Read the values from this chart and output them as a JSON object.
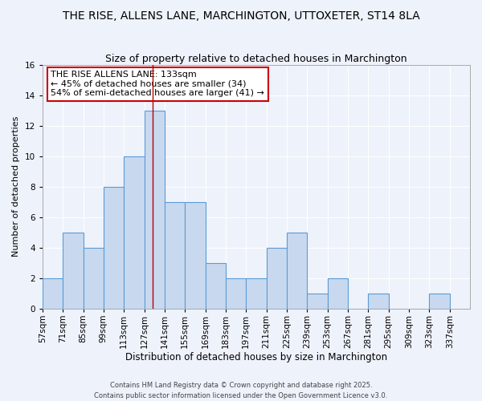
{
  "title": "THE RISE, ALLENS LANE, MARCHINGTON, UTTOXETER, ST14 8LA",
  "subtitle": "Size of property relative to detached houses in Marchington",
  "xlabel": "Distribution of detached houses by size in Marchington",
  "ylabel": "Number of detached properties",
  "bins": [
    57,
    71,
    85,
    99,
    113,
    127,
    141,
    155,
    169,
    183,
    197,
    211,
    225,
    239,
    253,
    267,
    281,
    295,
    309,
    323,
    337
  ],
  "counts": [
    2,
    5,
    4,
    8,
    10,
    13,
    7,
    7,
    3,
    2,
    2,
    4,
    5,
    1,
    2,
    0,
    1,
    0,
    0,
    1
  ],
  "bar_color": "#c8d9ef",
  "bar_edge_color": "#5b9bd5",
  "vline_x": 133,
  "vline_color": "#bb0000",
  "ylim": [
    0,
    16
  ],
  "yticks": [
    0,
    2,
    4,
    6,
    8,
    10,
    12,
    14,
    16
  ],
  "annotation_title": "THE RISE ALLENS LANE: 133sqm",
  "annotation_line1": "← 45% of detached houses are smaller (34)",
  "annotation_line2": "54% of semi-detached houses are larger (41) →",
  "annotation_box_facecolor": "#ffffff",
  "annotation_box_edgecolor": "#cc0000",
  "footer1": "Contains HM Land Registry data © Crown copyright and database right 2025.",
  "footer2": "Contains public sector information licensed under the Open Government Licence v3.0.",
  "bg_color": "#eef2fb",
  "grid_color": "#ffffff",
  "title_fontsize": 10,
  "subtitle_fontsize": 9,
  "xlabel_fontsize": 8.5,
  "ylabel_fontsize": 8,
  "tick_fontsize": 7.5,
  "annotation_fontsize": 8,
  "footer_fontsize": 6
}
